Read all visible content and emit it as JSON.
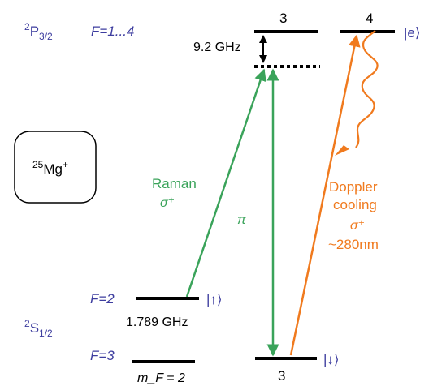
{
  "labels": {
    "p_term": {
      "letter": "P",
      "sup": "2",
      "sub": "3/2"
    },
    "p_F": "F=1...4",
    "p_level_3": "3",
    "p_level_4": "4",
    "e_state": "|e⟩",
    "detuning": "9.2 GHz",
    "ion_box": {
      "sup": "25",
      "base": "Mg",
      "charge": "+"
    },
    "raman": "Raman",
    "raman_pol": "σ⁺",
    "pi": "π",
    "doppler_1": "Doppler",
    "doppler_2": "cooling",
    "doppler_pol": "σ⁺",
    "doppler_wavelength": "~280nm",
    "s_term": {
      "letter": "S",
      "sup": "2",
      "sub": "1/2"
    },
    "F2": "F=2",
    "up_state": "|↑⟩",
    "hyperfine": "1.789 GHz",
    "F3": "F=3",
    "down_state": "|↓⟩",
    "mF": "m_F = 2",
    "bottom_3": "3"
  },
  "colors": {
    "blue_label": "#3d3d9f",
    "green": "#3aa35a",
    "orange": "#f07a1e",
    "black": "#000000"
  }
}
